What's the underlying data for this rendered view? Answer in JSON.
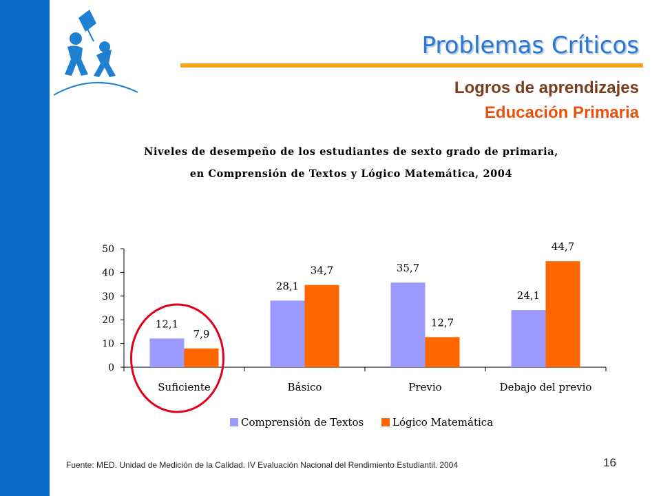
{
  "slide": {
    "title": "Problemas Críticos",
    "subtitle_1": "Logros de aprendizajes",
    "subtitle_2": "Educación Primaria",
    "source": "Fuente: MED. Unidad de Medición de la Calidad. IV Evaluación Nacional del Rendimiento Estudiantil. 2004",
    "page_number": "16"
  },
  "colors": {
    "sidebar": "#0a6cc8",
    "title": "#2a78d4",
    "rule": "#f7a21b",
    "subtitle_1": "#7a3e1e",
    "subtitle_2": "#e8520f",
    "series_1": "#9b9bff",
    "series_2": "#ff6600",
    "highlight_circle": "#e0001b",
    "logo": "#1f7fd0"
  },
  "logo": {
    "icon": "kite-and-children-logo"
  },
  "chart_data": {
    "type": "bar",
    "title_line_1": "Niveles de desempeño de los estudiantes de sexto grado de primaria,",
    "title_line_2": "en Comprensión de Textos y Lógico Matemática, 2004",
    "categories": [
      "Suficiente",
      "Básico",
      "Previo",
      "Debajo del previo"
    ],
    "series": [
      {
        "name": "Comprensión de Textos",
        "values": [
          12.1,
          28.1,
          35.7,
          24.1
        ],
        "labels": [
          "12,1",
          "28,1",
          "35,7",
          "24,1"
        ]
      },
      {
        "name": "Lógico Matemática",
        "values": [
          7.9,
          34.7,
          12.7,
          44.7
        ],
        "labels": [
          "7,9",
          "34,7",
          "12,7",
          "44,7"
        ]
      }
    ],
    "ylim": [
      0,
      50
    ],
    "yticks": [
      "0",
      "10",
      "20",
      "30",
      "40",
      "50"
    ],
    "xlabel": "",
    "ylabel": "",
    "legend_position": "bottom",
    "grid": false,
    "highlighted_category": "Suficiente"
  }
}
